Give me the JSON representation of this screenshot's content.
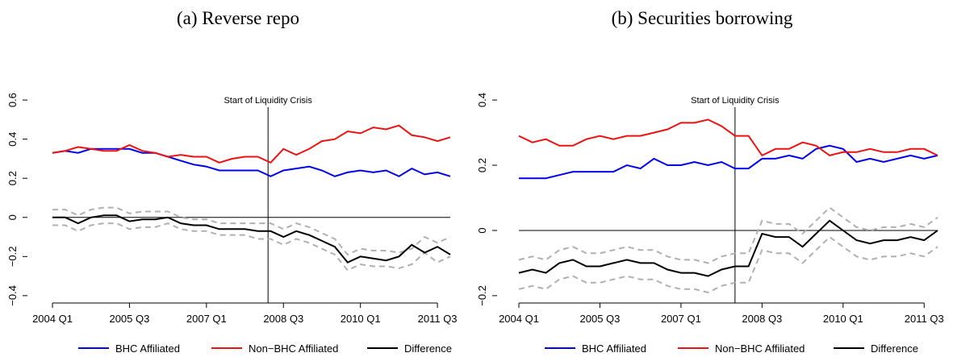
{
  "chart_data": [
    {
      "type": "line",
      "title": "(a) Reverse repo",
      "categories": [
        "2004 Q1",
        null,
        null,
        null,
        null,
        null,
        "2005 Q3",
        null,
        null,
        null,
        null,
        null,
        "2007 Q1",
        null,
        null,
        null,
        null,
        null,
        "2008 Q3",
        null,
        null,
        null,
        null,
        null,
        "2010 Q1",
        null,
        null,
        null,
        null,
        null,
        "2011 Q3",
        null
      ],
      "series": [
        {
          "name": "BHC Affiliated",
          "color": "#0000ee",
          "values": [
            0.33,
            0.34,
            0.33,
            0.35,
            0.35,
            0.35,
            0.35,
            0.33,
            0.33,
            0.31,
            0.29,
            0.27,
            0.26,
            0.24,
            0.24,
            0.24,
            0.24,
            0.21,
            0.24,
            0.25,
            0.26,
            0.24,
            0.21,
            0.23,
            0.24,
            0.23,
            0.24,
            0.21,
            0.25,
            0.22,
            0.23,
            0.21
          ]
        },
        {
          "name": "Non−BHC Affiliated",
          "color": "#ee1111",
          "values": [
            0.33,
            0.34,
            0.36,
            0.35,
            0.34,
            0.34,
            0.37,
            0.34,
            0.33,
            0.31,
            0.32,
            0.31,
            0.31,
            0.28,
            0.3,
            0.31,
            0.31,
            0.28,
            0.35,
            0.32,
            0.35,
            0.39,
            0.4,
            0.44,
            0.43,
            0.46,
            0.45,
            0.47,
            0.42,
            0.41,
            0.39,
            0.41
          ]
        },
        {
          "name": "Difference",
          "color": "#000000",
          "values": [
            0,
            0,
            -0.03,
            0,
            0.01,
            0.01,
            -0.02,
            -0.01,
            -0.01,
            0,
            -0.03,
            -0.04,
            -0.04,
            -0.06,
            -0.06,
            -0.06,
            -0.07,
            -0.07,
            -0.1,
            -0.07,
            -0.09,
            -0.12,
            -0.15,
            -0.23,
            -0.2,
            -0.21,
            -0.22,
            -0.2,
            -0.14,
            -0.18,
            -0.15,
            -0.19
          ]
        },
        {
          "color": "#b0b0b0",
          "dash": true,
          "values": [
            0.04,
            0.04,
            0.01,
            0.04,
            0.05,
            0.05,
            0.02,
            0.03,
            0.03,
            0.03,
            0,
            -0.01,
            -0.01,
            -0.03,
            -0.03,
            -0.03,
            -0.03,
            -0.03,
            -0.06,
            -0.03,
            -0.05,
            -0.08,
            -0.11,
            -0.19,
            -0.16,
            -0.17,
            -0.17,
            -0.18,
            -0.16,
            -0.1,
            -0.13,
            -0.1
          ]
        },
        {
          "color": "#b0b0b0",
          "dash": true,
          "values": [
            -0.04,
            -0.04,
            -0.07,
            -0.04,
            -0.03,
            -0.03,
            -0.06,
            -0.05,
            -0.05,
            -0.03,
            -0.06,
            -0.07,
            -0.07,
            -0.09,
            -0.09,
            -0.09,
            -0.11,
            -0.11,
            -0.14,
            -0.11,
            -0.13,
            -0.16,
            -0.19,
            -0.27,
            -0.24,
            -0.25,
            -0.25,
            -0.26,
            -0.24,
            -0.18,
            -0.23,
            -0.2
          ]
        }
      ],
      "ylim": [
        -0.45,
        0.65
      ],
      "yticks": [
        {
          "value": -0.4,
          "label": "−0.4"
        },
        {
          "value": -0.2,
          "label": "−0.2"
        },
        0,
        0.2,
        0.4,
        0.6
      ],
      "hline": 0,
      "annotation": {
        "text": "Start of Liquidity Crisis",
        "x_index": 16.8
      }
    },
    {
      "type": "line",
      "title": "(b) Securities borrowing",
      "categories": [
        "2004 Q1",
        null,
        null,
        null,
        null,
        null,
        "2005 Q3",
        null,
        null,
        null,
        null,
        null,
        "2007 Q1",
        null,
        null,
        null,
        null,
        null,
        "2008 Q3",
        null,
        null,
        null,
        null,
        null,
        "2010 Q1",
        null,
        null,
        null,
        null,
        null,
        "2011 Q3",
        null
      ],
      "series": [
        {
          "name": "BHC Affiliated",
          "color": "#0000ee",
          "values": [
            0.16,
            0.16,
            0.16,
            0.17,
            0.18,
            0.18,
            0.18,
            0.18,
            0.2,
            0.19,
            0.22,
            0.2,
            0.2,
            0.21,
            0.2,
            0.21,
            0.19,
            0.19,
            0.22,
            0.22,
            0.23,
            0.22,
            0.25,
            0.26,
            0.25,
            0.21,
            0.22,
            0.21,
            0.22,
            0.23,
            0.22,
            0.23
          ]
        },
        {
          "name": "Non−BHC Affiliated",
          "color": "#ee1111",
          "values": [
            0.29,
            0.27,
            0.28,
            0.26,
            0.26,
            0.28,
            0.29,
            0.28,
            0.29,
            0.29,
            0.3,
            0.31,
            0.33,
            0.33,
            0.34,
            0.32,
            0.29,
            0.29,
            0.23,
            0.25,
            0.25,
            0.27,
            0.26,
            0.23,
            0.24,
            0.24,
            0.25,
            0.24,
            0.24,
            0.25,
            0.25,
            0.23
          ]
        },
        {
          "name": "Difference",
          "color": "#000000",
          "values": [
            -0.13,
            -0.12,
            -0.13,
            -0.1,
            -0.09,
            -0.11,
            -0.11,
            -0.1,
            -0.09,
            -0.1,
            -0.1,
            -0.12,
            -0.13,
            -0.13,
            -0.14,
            -0.12,
            -0.11,
            -0.11,
            -0.01,
            -0.02,
            -0.02,
            -0.05,
            -0.01,
            0.03,
            0,
            -0.03,
            -0.04,
            -0.03,
            -0.03,
            -0.02,
            -0.03,
            0
          ]
        },
        {
          "color": "#b0b0b0",
          "dash": true,
          "values": [
            -0.09,
            -0.08,
            -0.09,
            -0.06,
            -0.05,
            -0.07,
            -0.07,
            -0.06,
            -0.05,
            -0.06,
            -0.06,
            -0.08,
            -0.09,
            -0.09,
            -0.1,
            -0.08,
            -0.07,
            -0.07,
            0.03,
            0.02,
            0.02,
            -0.01,
            0.03,
            0.07,
            0.04,
            0.01,
            0,
            0.01,
            0.01,
            0.02,
            0.01,
            0.04
          ]
        },
        {
          "color": "#b0b0b0",
          "dash": true,
          "values": [
            -0.18,
            -0.17,
            -0.18,
            -0.15,
            -0.14,
            -0.16,
            -0.16,
            -0.15,
            -0.14,
            -0.15,
            -0.15,
            -0.17,
            -0.18,
            -0.18,
            -0.19,
            -0.17,
            -0.16,
            -0.16,
            -0.06,
            -0.07,
            -0.07,
            -0.1,
            -0.06,
            -0.02,
            -0.05,
            -0.08,
            -0.09,
            -0.08,
            -0.08,
            -0.07,
            -0.08,
            -0.05
          ]
        }
      ],
      "ylim": [
        -0.22,
        0.42
      ],
      "yticks": [
        {
          "value": -0.2,
          "label": "−0.2"
        },
        0,
        0.2,
        0.4
      ],
      "hline": 0,
      "annotation": {
        "text": "Start of Liquidity Crisis",
        "x_index": 16
      }
    }
  ]
}
